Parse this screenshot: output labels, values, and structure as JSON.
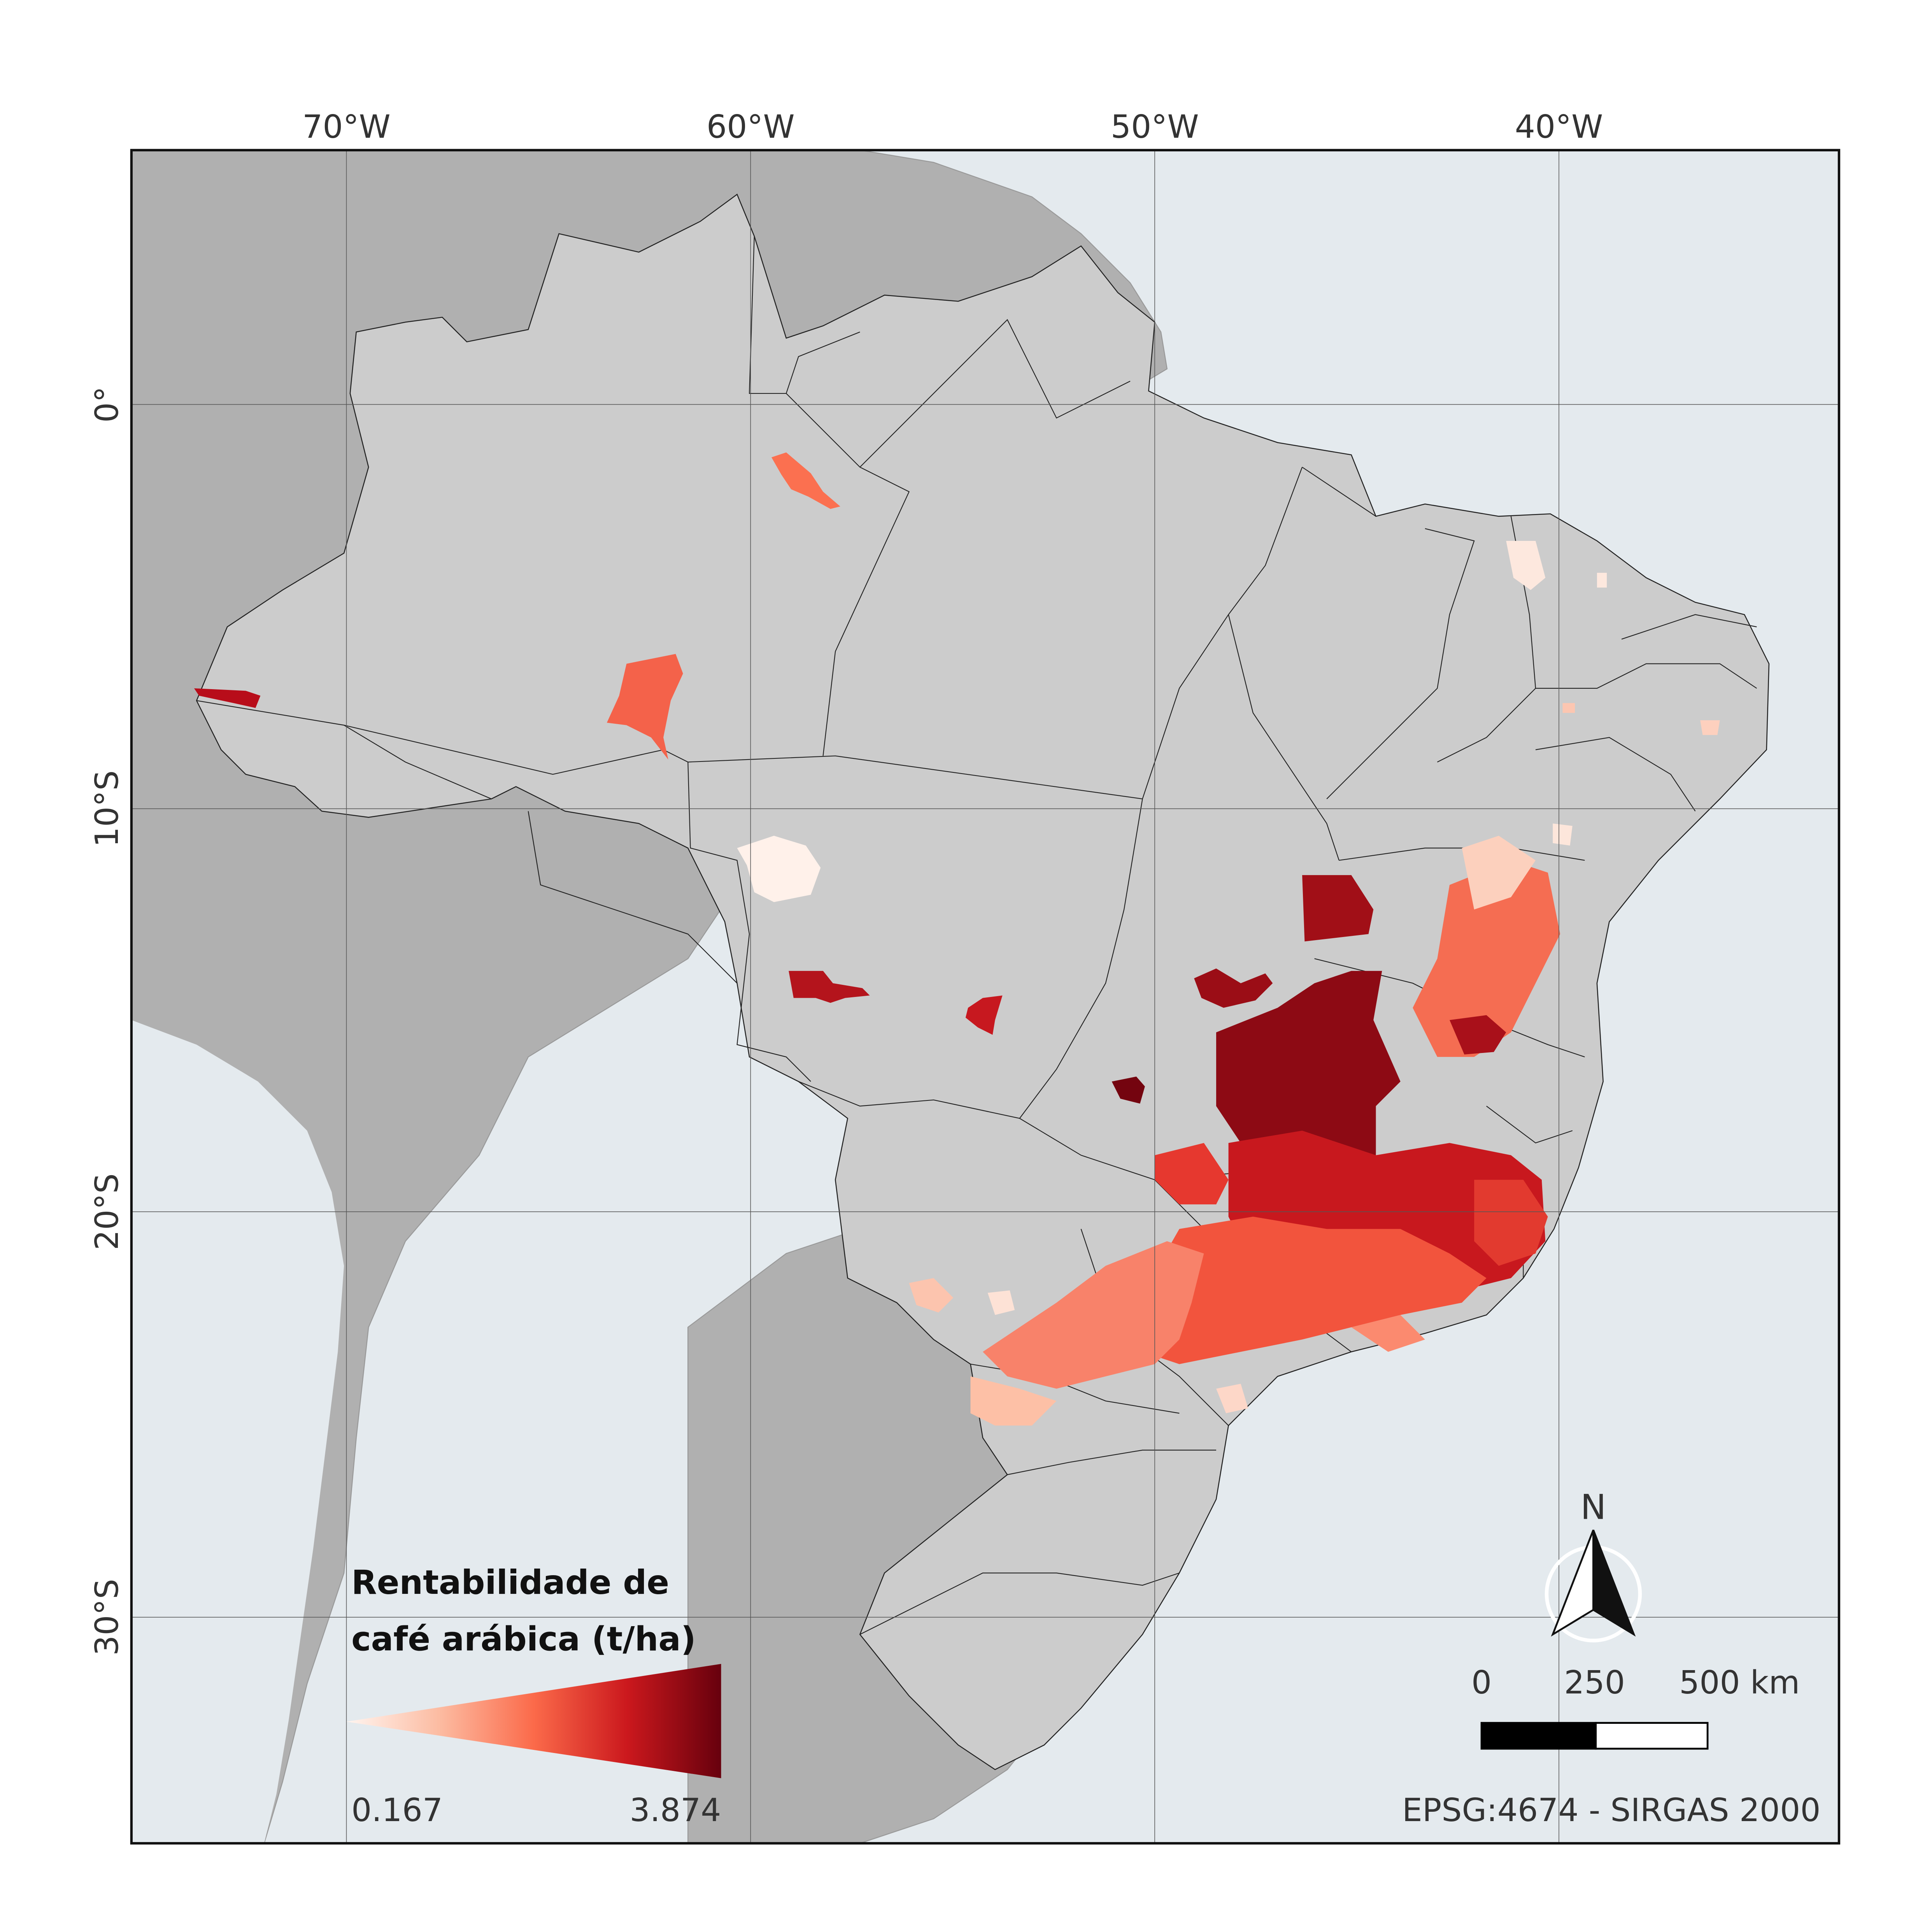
{
  "graticule": {
    "lon_labels": [
      "70°W",
      "60°W",
      "50°W",
      "40°W"
    ],
    "lat_labels": [
      "0°",
      "10°S",
      "20°S",
      "30°S"
    ]
  },
  "legend": {
    "title_line1": "Rentabilidade de",
    "title_line2": "café arábica (t/ha)",
    "min": "0.167",
    "max": "3.874",
    "ramp_colors": [
      "#fff5f0",
      "#fcbba1",
      "#fb6a4a",
      "#cb181d",
      "#67000d"
    ]
  },
  "north_arrow": {
    "label": "N"
  },
  "scale_bar": {
    "label_0": "0",
    "label_mid": "250",
    "label_end": "500 km"
  },
  "crs": "EPSG:4674 - SIRGAS 2000",
  "colors": {
    "ocean": "#e4eaee",
    "neighbor_land": "#b0b0b0",
    "brazil": "#cccccc",
    "border": "#222222"
  }
}
